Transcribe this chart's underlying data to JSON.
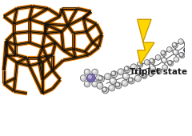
{
  "background_color": "#ffffff",
  "lightning_color": "#FFD700",
  "lightning_outline": "#CC9900",
  "text_label": "Triplet state",
  "text_color": "#1a1a1a",
  "text_fontsize": 7.5,
  "framework_orange": "#FF8800",
  "framework_dark": "#111111",
  "mol_gray_light": "#cccccc",
  "mol_gray_mid": "#999999",
  "mol_gray_dark": "#555555",
  "mol_purple": "#7766aa",
  "mol_red": "#cc1100",
  "mol_blue_dark": "#222244"
}
